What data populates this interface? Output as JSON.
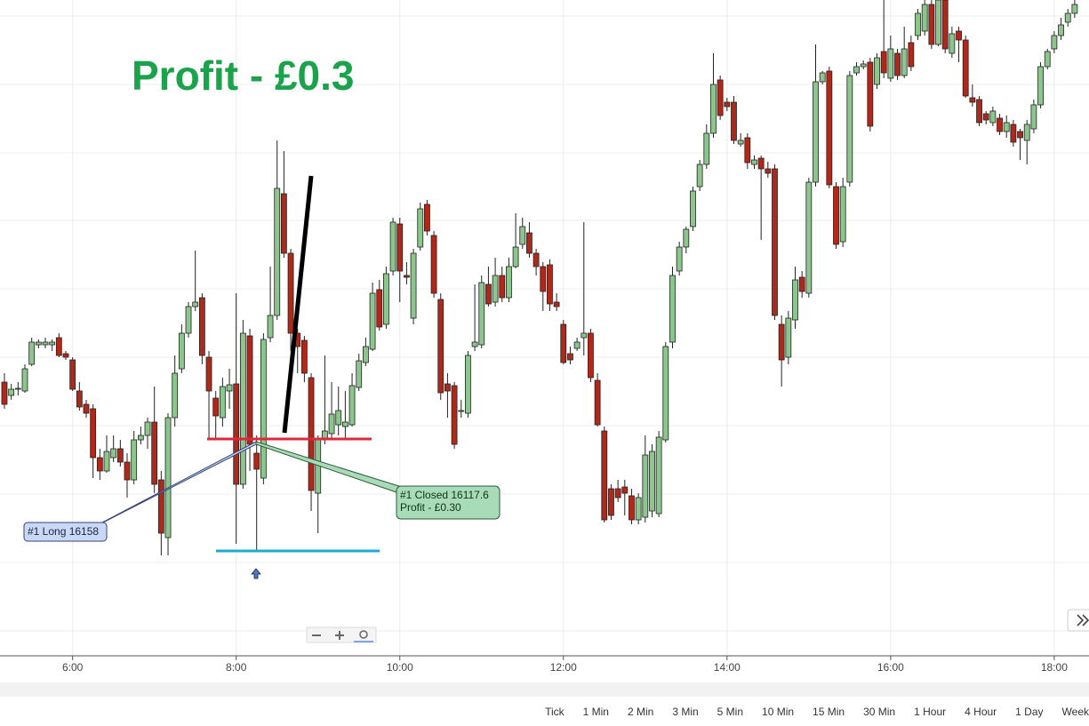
{
  "chart_data": {
    "type": "candlestick",
    "title": "Profit - £0.3",
    "up_color": "#8cc68c",
    "down_color": "#b0281a",
    "ylim": [
      0,
      738
    ],
    "xlim": [
      -0.65,
      159.1
    ],
    "xticks": [
      {
        "value": 10,
        "label": "6:00"
      },
      {
        "value": 34,
        "label": "8:00"
      },
      {
        "value": 58,
        "label": "10:00"
      },
      {
        "value": 82,
        "label": "12:00"
      },
      {
        "value": 106,
        "label": "14:00"
      },
      {
        "value": 130,
        "label": "16:00"
      },
      {
        "value": 154,
        "label": "18:00"
      }
    ],
    "grid": true,
    "candles": [
      [
        308,
        318,
        278,
        283
      ],
      [
        293,
        306,
        288,
        300
      ],
      [
        300,
        308,
        293,
        301
      ],
      [
        298,
        328,
        296,
        323
      ],
      [
        328,
        358,
        326,
        353
      ],
      [
        350,
        356,
        346,
        353
      ],
      [
        350,
        358,
        346,
        353
      ],
      [
        350,
        356,
        343,
        353
      ],
      [
        358,
        363,
        336,
        338
      ],
      [
        340,
        343,
        333,
        336
      ],
      [
        333,
        336,
        298,
        300
      ],
      [
        298,
        308,
        276,
        280
      ],
      [
        283,
        288,
        268,
        273
      ],
      [
        278,
        283,
        200,
        223
      ],
      [
        223,
        233,
        198,
        208
      ],
      [
        208,
        248,
        206,
        230
      ],
      [
        223,
        248,
        218,
        233
      ],
      [
        233,
        243,
        213,
        218
      ],
      [
        218,
        228,
        178,
        198
      ],
      [
        198,
        253,
        193,
        243
      ],
      [
        243,
        258,
        238,
        248
      ],
      [
        248,
        268,
        233,
        263
      ],
      [
        263,
        303,
        183,
        193
      ],
      [
        198,
        208,
        113,
        138
      ],
      [
        133,
        273,
        113,
        268
      ],
      [
        268,
        338,
        258,
        318
      ],
      [
        323,
        373,
        318,
        363
      ],
      [
        363,
        398,
        358,
        393
      ],
      [
        393,
        456,
        388,
        398
      ],
      [
        403,
        408,
        328,
        338
      ],
      [
        336,
        343,
        243,
        298
      ],
      [
        290,
        298,
        243,
        270
      ],
      [
        268,
        313,
        258,
        303
      ],
      [
        298,
        323,
        278,
        305
      ],
      [
        306,
        408,
        126,
        193
      ],
      [
        193,
        378,
        188,
        363
      ],
      [
        360,
        368,
        208,
        238
      ],
      [
        228,
        248,
        118,
        210
      ],
      [
        200,
        363,
        193,
        356
      ],
      [
        358,
        438,
        353,
        383
      ],
      [
        383,
        580,
        378,
        526
      ],
      [
        520,
        568,
        448,
        453
      ],
      [
        453,
        458,
        343,
        363
      ],
      [
        363,
        368,
        318,
        348
      ],
      [
        355,
        360,
        308,
        318
      ],
      [
        313,
        318,
        163,
        186
      ],
      [
        183,
        248,
        138,
        243
      ],
      [
        243,
        338,
        238,
        253
      ],
      [
        250,
        308,
        243,
        272
      ],
      [
        260,
        303,
        248,
        276
      ],
      [
        258,
        298,
        243,
        263
      ],
      [
        260,
        318,
        258,
        304
      ],
      [
        302,
        340,
        298,
        332
      ],
      [
        330,
        358,
        326,
        348
      ],
      [
        345,
        420,
        343,
        408
      ],
      [
        412,
        423,
        366,
        370
      ],
      [
        373,
        438,
        368,
        430
      ],
      [
        433,
        493,
        428,
        488
      ],
      [
        486,
        493,
        398,
        433
      ],
      [
        428,
        443,
        418,
        426
      ],
      [
        380,
        458,
        373,
        453
      ],
      [
        460,
        510,
        456,
        503
      ],
      [
        508,
        513,
        473,
        478
      ],
      [
        473,
        478,
        403,
        408
      ],
      [
        401,
        408,
        288,
        296
      ],
      [
        306,
        318,
        268,
        298
      ],
      [
        304,
        308,
        233,
        238
      ],
      [
        276,
        288,
        268,
        276
      ],
      [
        273,
        343,
        268,
        338
      ],
      [
        348,
        418,
        343,
        353
      ],
      [
        350,
        428,
        346,
        420
      ],
      [
        418,
        438,
        393,
        396
      ],
      [
        398,
        448,
        393,
        428
      ],
      [
        428,
        438,
        398,
        403
      ],
      [
        403,
        448,
        398,
        438
      ],
      [
        438,
        498,
        436,
        460
      ],
      [
        463,
        493,
        458,
        483
      ],
      [
        476,
        488,
        448,
        453
      ],
      [
        453,
        458,
        428,
        438
      ],
      [
        438,
        443,
        388,
        410
      ],
      [
        440,
        446,
        388,
        396
      ],
      [
        398,
        408,
        388,
        393
      ],
      [
        373,
        378,
        328,
        330
      ],
      [
        340,
        348,
        328,
        333
      ],
      [
        346,
        358,
        343,
        353
      ],
      [
        358,
        488,
        338,
        363
      ],
      [
        363,
        368,
        308,
        313
      ],
      [
        310,
        318,
        258,
        260
      ],
      [
        253,
        258,
        150,
        153
      ],
      [
        188,
        193,
        153,
        158
      ],
      [
        188,
        198,
        173,
        178
      ],
      [
        190,
        198,
        158,
        183
      ],
      [
        180,
        188,
        148,
        153
      ],
      [
        153,
        183,
        148,
        178
      ],
      [
        156,
        248,
        150,
        226
      ],
      [
        163,
        238,
        156,
        230
      ],
      [
        160,
        253,
        156,
        246
      ],
      [
        243,
        353,
        240,
        348
      ],
      [
        353,
        438,
        346,
        428
      ],
      [
        433,
        466,
        428,
        460
      ],
      [
        460,
        483,
        453,
        480
      ],
      [
        483,
        528,
        478,
        523
      ],
      [
        528,
        558,
        523,
        553
      ],
      [
        553,
        598,
        548,
        588
      ],
      [
        588,
        678,
        583,
        643
      ],
      [
        648,
        653,
        603,
        608
      ],
      [
        623,
        628,
        613,
        618
      ],
      [
        623,
        630,
        576,
        580
      ],
      [
        576,
        588,
        573,
        580
      ],
      [
        583,
        588,
        548,
        555
      ],
      [
        553,
        563,
        548,
        558
      ],
      [
        560,
        563,
        468,
        548
      ],
      [
        548,
        556,
        538,
        543
      ],
      [
        548,
        553,
        378,
        383
      ],
      [
        373,
        383,
        303,
        333
      ],
      [
        336,
        388,
        328,
        380
      ],
      [
        378,
        438,
        368,
        423
      ],
      [
        426,
        433,
        403,
        410
      ],
      [
        408,
        538,
        403,
        533
      ],
      [
        533,
        688,
        528,
        646
      ],
      [
        646,
        658,
        643,
        656
      ],
      [
        658,
        663,
        526,
        530
      ],
      [
        528,
        533,
        458,
        463
      ],
      [
        466,
        538,
        460,
        528
      ],
      [
        533,
        658,
        528,
        653
      ],
      [
        656,
        668,
        653,
        663
      ],
      [
        663,
        670,
        660,
        666
      ],
      [
        668,
        673,
        590,
        596
      ],
      [
        643,
        678,
        638,
        673
      ],
      [
        680,
        738,
        650,
        656
      ],
      [
        650,
        698,
        646,
        683
      ],
      [
        678,
        683,
        648,
        653
      ],
      [
        653,
        708,
        650,
        683
      ],
      [
        690,
        698,
        658,
        663
      ],
      [
        698,
        728,
        693,
        723
      ],
      [
        703,
        738,
        698,
        733
      ],
      [
        733,
        738,
        683,
        688
      ],
      [
        688,
        738,
        686,
        738
      ],
      [
        738,
        738,
        678,
        683
      ],
      [
        678,
        708,
        673,
        700
      ],
      [
        703,
        708,
        668,
        693
      ],
      [
        693,
        698,
        628,
        630
      ],
      [
        628,
        643,
        618,
        623
      ],
      [
        626,
        630,
        596,
        600
      ],
      [
        610,
        613,
        598,
        603
      ],
      [
        600,
        618,
        596,
        613
      ],
      [
        605,
        610,
        586,
        590
      ],
      [
        590,
        608,
        583,
        600
      ],
      [
        598,
        603,
        573,
        578
      ],
      [
        590,
        593,
        558,
        583
      ],
      [
        580,
        603,
        553,
        598
      ],
      [
        593,
        626,
        588,
        620
      ],
      [
        620,
        668,
        616,
        663
      ],
      [
        663,
        683,
        660,
        680
      ],
      [
        683,
        703,
        678,
        698
      ],
      [
        698,
        718,
        693,
        710
      ],
      [
        713,
        728,
        708,
        723
      ],
      [
        723,
        738,
        718,
        733
      ]
    ],
    "annotations": {
      "entry": "#1 Long 16158",
      "exit": "#1 Closed 16117.6",
      "exit_profit": "Profit - £0.30"
    }
  },
  "timeframes": [
    "Tick",
    "1 Min",
    "2 Min",
    "3 Min",
    "5 Min",
    "10 Min",
    "15 Min",
    "30 Min",
    "1 Hour",
    "4 Hour",
    "1 Day",
    "Week"
  ]
}
